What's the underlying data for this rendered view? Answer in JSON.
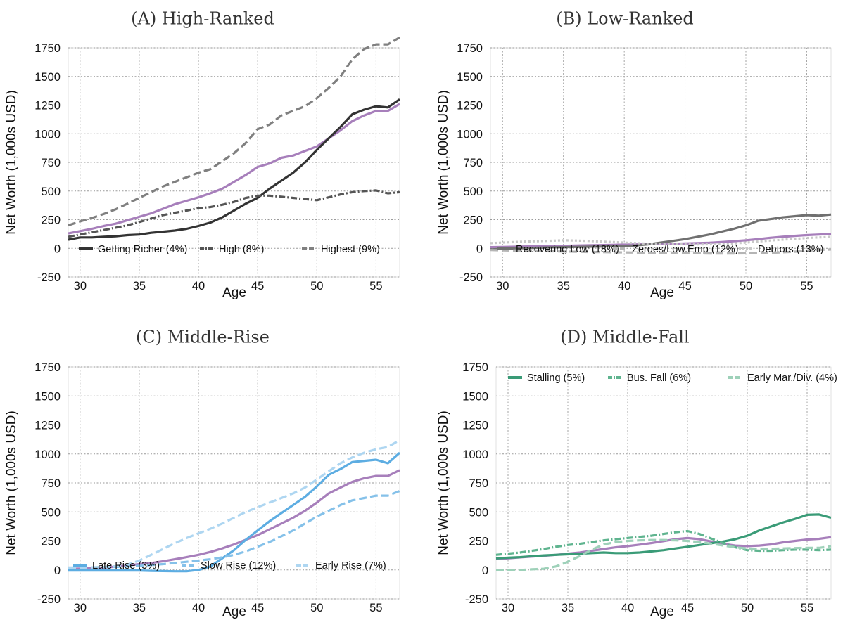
{
  "chart_data": [
    {
      "type": "line",
      "title": "(A) High-Ranked",
      "xlabel": "Age",
      "ylabel": "Net Worth (1,000s USD)",
      "xlim": [
        29,
        57
      ],
      "ylim": [
        -250,
        1750
      ],
      "xticks": [
        30,
        35,
        40,
        45,
        50,
        55
      ],
      "yticks": [
        -250,
        0,
        250,
        500,
        750,
        1000,
        1250,
        1500,
        1750
      ],
      "grid": true,
      "legend_position": "bottom",
      "x": [
        29,
        30,
        31,
        32,
        33,
        34,
        35,
        36,
        37,
        38,
        39,
        40,
        41,
        42,
        43,
        44,
        45,
        46,
        47,
        48,
        49,
        50,
        51,
        52,
        53,
        54,
        55,
        56,
        57
      ],
      "series": [
        {
          "name": "",
          "style": "solid",
          "color": "#a77fbb",
          "legend": false,
          "values": [
            130,
            150,
            170,
            195,
            215,
            245,
            275,
            305,
            345,
            385,
            415,
            445,
            480,
            520,
            580,
            640,
            710,
            740,
            790,
            810,
            850,
            890,
            960,
            1030,
            1110,
            1160,
            1200,
            1200,
            1260
          ]
        },
        {
          "name": "Getting Richer (4%)",
          "style": "solid",
          "color": "#333333",
          "legend": true,
          "values": [
            75,
            95,
            95,
            100,
            105,
            115,
            120,
            135,
            145,
            155,
            170,
            195,
            225,
            270,
            330,
            390,
            440,
            520,
            590,
            660,
            750,
            860,
            960,
            1060,
            1170,
            1210,
            1240,
            1230,
            1300
          ]
        },
        {
          "name": "High (8%)",
          "style": "dashdot",
          "color": "#555555",
          "legend": true,
          "values": [
            100,
            120,
            140,
            160,
            180,
            200,
            230,
            260,
            290,
            310,
            330,
            350,
            360,
            380,
            405,
            440,
            460,
            460,
            450,
            440,
            430,
            420,
            445,
            470,
            490,
            500,
            505,
            480,
            490
          ]
        },
        {
          "name": "Highest (9%)",
          "style": "dashed",
          "color": "#808080",
          "legend": true,
          "values": [
            200,
            235,
            265,
            300,
            340,
            390,
            440,
            490,
            540,
            580,
            620,
            660,
            690,
            760,
            830,
            920,
            1040,
            1080,
            1160,
            1200,
            1240,
            1310,
            1400,
            1500,
            1650,
            1740,
            1780,
            1780,
            1840
          ]
        }
      ]
    },
    {
      "type": "line",
      "title": "(B) Low-Ranked",
      "xlabel": "Age",
      "ylabel": "Net Worth (1,000s USD)",
      "xlim": [
        29,
        57
      ],
      "ylim": [
        -250,
        1750
      ],
      "xticks": [
        30,
        35,
        40,
        45,
        50,
        55
      ],
      "yticks": [
        -250,
        0,
        250,
        500,
        750,
        1000,
        1250,
        1500,
        1750
      ],
      "grid": true,
      "legend_position": "bottom",
      "x": [
        29,
        30,
        31,
        32,
        33,
        34,
        35,
        36,
        37,
        38,
        39,
        40,
        41,
        42,
        43,
        44,
        45,
        46,
        47,
        48,
        49,
        50,
        51,
        52,
        53,
        54,
        55,
        56,
        57
      ],
      "series": [
        {
          "name": "",
          "style": "solid",
          "color": "#a77fbb",
          "legend": false,
          "values": [
            10,
            12,
            14,
            16,
            18,
            20,
            22,
            24,
            26,
            28,
            30,
            32,
            34,
            36,
            38,
            40,
            42,
            45,
            48,
            55,
            62,
            70,
            80,
            92,
            100,
            108,
            115,
            120,
            125
          ]
        },
        {
          "name": "Recovering Low (18%)",
          "style": "solid",
          "color": "#707070",
          "legend": true,
          "values": [
            -10,
            -5,
            0,
            2,
            5,
            8,
            10,
            12,
            14,
            15,
            18,
            20,
            25,
            35,
            50,
            65,
            80,
            100,
            120,
            145,
            170,
            200,
            240,
            255,
            270,
            280,
            290,
            285,
            295
          ]
        },
        {
          "name": "Zeroes/Low.Emp (12%)",
          "style": "dashed",
          "color": "#b5b5b5",
          "legend": true,
          "values": [
            -15,
            -18,
            -20,
            -22,
            -24,
            -26,
            -28,
            -30,
            -32,
            -33,
            -35,
            -36,
            -38,
            -40,
            -40,
            -42,
            -43,
            -44,
            -45,
            -45,
            -45,
            -44,
            -42,
            -40,
            -35,
            -30,
            -20,
            -15,
            -10
          ]
        },
        {
          "name": "Debtors (13%)",
          "style": "dotted",
          "color": "#c8c8c8",
          "legend": true,
          "values": [
            45,
            50,
            55,
            60,
            63,
            66,
            70,
            68,
            65,
            60,
            55,
            50,
            45,
            40,
            38,
            36,
            35,
            34,
            35,
            38,
            42,
            50,
            60,
            68,
            75,
            82,
            90,
            95,
            100
          ]
        }
      ]
    },
    {
      "type": "line",
      "title": "(C) Middle-Rise",
      "xlabel": "Age",
      "ylabel": "Net Worth (1,000s USD)",
      "xlim": [
        29,
        57
      ],
      "ylim": [
        -250,
        1750
      ],
      "xticks": [
        30,
        35,
        40,
        45,
        50,
        55
      ],
      "yticks": [
        -250,
        0,
        250,
        500,
        750,
        1000,
        1250,
        1500,
        1750
      ],
      "grid": true,
      "legend_position": "bottom",
      "x": [
        29,
        30,
        31,
        32,
        33,
        34,
        35,
        36,
        37,
        38,
        39,
        40,
        41,
        42,
        43,
        44,
        45,
        46,
        47,
        48,
        49,
        50,
        51,
        52,
        53,
        54,
        55,
        56,
        57
      ],
      "series": [
        {
          "name": "",
          "style": "solid",
          "color": "#a77fbb",
          "legend": false,
          "values": [
            10,
            12,
            15,
            20,
            28,
            38,
            50,
            60,
            75,
            92,
            110,
            130,
            155,
            185,
            220,
            260,
            300,
            350,
            400,
            450,
            510,
            580,
            660,
            710,
            760,
            790,
            810,
            810,
            860
          ]
        },
        {
          "name": "Late Rise (3%)",
          "style": "solid",
          "color": "#5dade2",
          "legend": true,
          "values": [
            -5,
            -5,
            -5,
            -5,
            -5,
            -5,
            -5,
            -8,
            -10,
            -12,
            -12,
            0,
            30,
            100,
            170,
            260,
            340,
            420,
            490,
            560,
            630,
            720,
            820,
            870,
            930,
            940,
            950,
            920,
            1010
          ]
        },
        {
          "name": "Slow Rise (12%)",
          "style": "dashed",
          "color": "#85c1e9",
          "legend": true,
          "values": [
            20,
            20,
            22,
            24,
            26,
            30,
            35,
            42,
            50,
            60,
            70,
            80,
            92,
            108,
            130,
            160,
            200,
            240,
            290,
            340,
            400,
            460,
            510,
            560,
            600,
            620,
            640,
            640,
            680
          ]
        },
        {
          "name": "Early Rise (7%)",
          "style": "dashed",
          "color": "#aed6f1",
          "legend": true,
          "values": [
            20,
            20,
            22,
            25,
            32,
            45,
            80,
            130,
            180,
            230,
            275,
            315,
            355,
            400,
            450,
            500,
            540,
            580,
            620,
            660,
            710,
            780,
            850,
            920,
            970,
            1010,
            1040,
            1060,
            1120
          ]
        }
      ]
    },
    {
      "type": "line",
      "title": "(D) Middle-Fall",
      "xlabel": "Age",
      "ylabel": "Net Worth (1,000s USD)",
      "xlim": [
        29,
        57
      ],
      "ylim": [
        -250,
        1750
      ],
      "xticks": [
        30,
        35,
        40,
        45,
        50,
        55
      ],
      "yticks": [
        -250,
        0,
        250,
        500,
        750,
        1000,
        1250,
        1500,
        1750
      ],
      "grid": true,
      "legend_position": "top",
      "x": [
        29,
        30,
        31,
        32,
        33,
        34,
        35,
        36,
        37,
        38,
        39,
        40,
        41,
        42,
        43,
        44,
        45,
        46,
        47,
        48,
        49,
        50,
        51,
        52,
        53,
        54,
        55,
        56,
        57
      ],
      "series": [
        {
          "name": "",
          "style": "solid",
          "color": "#a77fbb",
          "legend": false,
          "values": [
            95,
            100,
            108,
            115,
            122,
            130,
            140,
            150,
            165,
            180,
            195,
            205,
            218,
            232,
            248,
            265,
            275,
            265,
            245,
            225,
            210,
            205,
            210,
            220,
            238,
            250,
            262,
            268,
            282
          ]
        },
        {
          "name": "Stalling (5%)",
          "style": "solid",
          "color": "#3a9b77",
          "legend": true,
          "values": [
            100,
            105,
            110,
            118,
            125,
            130,
            135,
            140,
            145,
            150,
            145,
            145,
            150,
            160,
            170,
            185,
            200,
            215,
            230,
            245,
            265,
            295,
            340,
            375,
            410,
            440,
            475,
            478,
            450
          ]
        },
        {
          "name": "Bus. Fall (6%)",
          "style": "dashdot",
          "color": "#5fb48f",
          "legend": true,
          "values": [
            130,
            140,
            150,
            165,
            180,
            200,
            215,
            225,
            240,
            255,
            265,
            275,
            285,
            295,
            310,
            325,
            335,
            310,
            270,
            230,
            195,
            170,
            165,
            165,
            170,
            175,
            175,
            170,
            175
          ]
        },
        {
          "name": "Early Mar./Div. (4%)",
          "style": "dashed",
          "color": "#9ed1b9",
          "legend": true,
          "values": [
            0,
            0,
            0,
            5,
            10,
            30,
            70,
            120,
            175,
            220,
            240,
            250,
            255,
            258,
            258,
            255,
            250,
            240,
            225,
            210,
            195,
            185,
            180,
            182,
            185,
            188,
            190,
            190,
            205
          ]
        }
      ]
    }
  ]
}
